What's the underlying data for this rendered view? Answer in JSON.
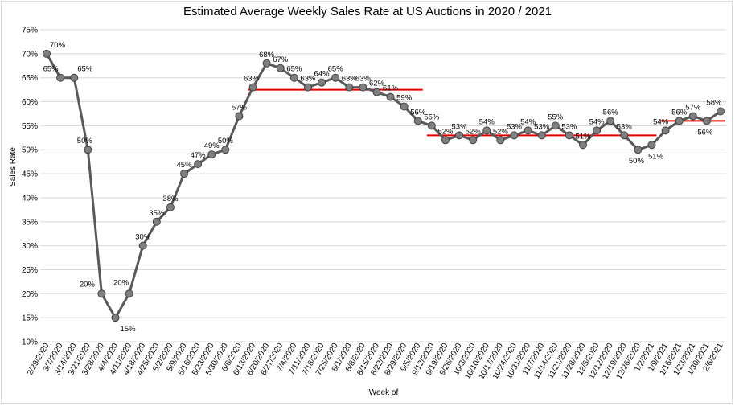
{
  "chart_data": {
    "type": "line",
    "title": "Estimated Average Weekly Sales Rate at US Auctions in 2020 / 2021",
    "xlabel": "Week of",
    "ylabel": "Sales Rate",
    "ylim": [
      10,
      75
    ],
    "yticks": [
      "10%",
      "15%",
      "20%",
      "25%",
      "30%",
      "35%",
      "40%",
      "45%",
      "50%",
      "55%",
      "60%",
      "65%",
      "70%",
      "75%"
    ],
    "grid": true,
    "categories": [
      "2/29/2020",
      "3/7/2020",
      "3/14/2020",
      "3/21/2020",
      "3/28/2020",
      "4/4/2020",
      "4/11/2020",
      "4/18/2020",
      "4/25/2020",
      "5/2/2020",
      "5/9/2020",
      "5/16/2020",
      "5/23/2020",
      "5/30/2020",
      "6/6/2020",
      "6/13/2020",
      "6/20/2020",
      "6/27/2020",
      "7/4/2020",
      "7/11/2020",
      "7/18/2020",
      "7/25/2020",
      "8/1/2020",
      "8/8/2020",
      "8/15/2020",
      "8/22/2020",
      "8/29/2020",
      "9/5/2020",
      "9/12/2020",
      "9/19/2020",
      "9/26/2020",
      "10/3/2020",
      "10/10/2020",
      "10/17/2020",
      "10/24/2020",
      "10/31/2020",
      "11/7/2020",
      "11/14/2020",
      "11/21/2020",
      "11/28/2020",
      "12/5/2020",
      "12/12/2020",
      "12/19/2020",
      "12/26/2020",
      "1/2/2021",
      "1/9/2021",
      "1/16/2021",
      "1/23/2021",
      "1/30/2021",
      "2/6/2021"
    ],
    "values": [
      70,
      65,
      65,
      50,
      20,
      15,
      20,
      30,
      35,
      38,
      45,
      47,
      49,
      50,
      57,
      63,
      68,
      67,
      65,
      63,
      64,
      65,
      63,
      63,
      62,
      61,
      59,
      56,
      55,
      52,
      53,
      52,
      54,
      52,
      53,
      54,
      53,
      55,
      53,
      51,
      54,
      56,
      53,
      50,
      51,
      54,
      56,
      57,
      56,
      58
    ],
    "data_labels": [
      "70%",
      "65%",
      "65%",
      "50%",
      "20%",
      "15%",
      "20%",
      "30%",
      "35%",
      "38%",
      "45%",
      "47%",
      "49%",
      "50%",
      "57%",
      "63%",
      "68%",
      "67%",
      "65%",
      "63%",
      "64%",
      "65%",
      "63%",
      "63%",
      "62%",
      "61%",
      "59%",
      "56%",
      "55%",
      "52%",
      "53%",
      "52%",
      "54%",
      "52%",
      "53%",
      "54%",
      "53%",
      "55%",
      "53%",
      "51%",
      "54%",
      "56%",
      "53%",
      "50%",
      "51%",
      "54%",
      "56%",
      "57%",
      "56%",
      "58%"
    ],
    "reference_lines": [
      {
        "from_index": 15,
        "to_index": 27,
        "value": 62.5
      },
      {
        "from_index": 28,
        "to_index": 44,
        "value": 53
      },
      {
        "from_index": 45,
        "to_index": 49,
        "value": 56
      }
    ],
    "colors": {
      "line": "#595959",
      "marker": "#595959",
      "reference": "#e00000",
      "grid": "#d9d9d9"
    }
  }
}
